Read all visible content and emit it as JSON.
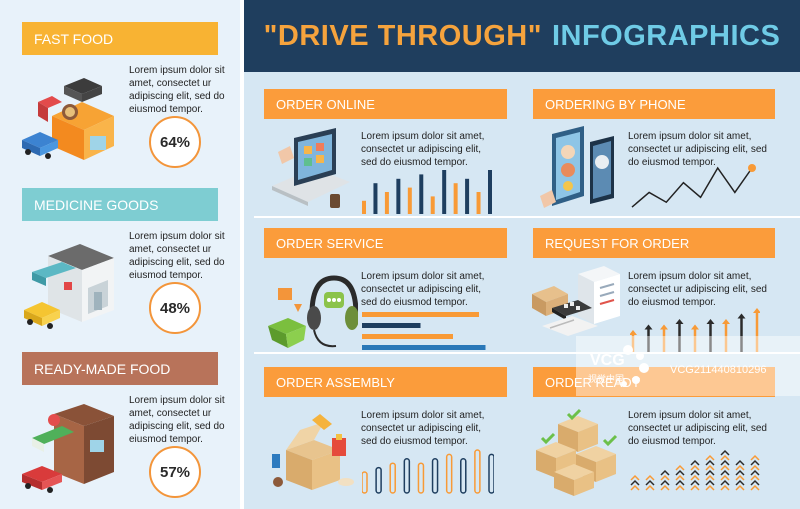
{
  "title": {
    "part1": "\"DRIVE THROUGH\"",
    "part2": "INFOGRAPHICS"
  },
  "lorem": "Lorem ipsum dolor sit amet, consectet ur adipiscing elit, sed do eiusmod tempor.",
  "left": [
    {
      "label": "FAST FOOD",
      "lorem": "Lorem ipsum dolor sit amet, consectet ur adipiscing elit, sed do eiusmod tempor.",
      "percent": "64%",
      "color": "#f8b333"
    },
    {
      "label": "MEDICINE GOODS",
      "lorem": "Lorem ipsum dolor sit amet, consectet ur adipiscing elit, sed do eiusmod tempor.",
      "percent": "48%",
      "color": "#7ecdd2"
    },
    {
      "label": "READY-MADE FOOD",
      "lorem": "Lorem ipsum dolor sit amet, consectet ur adipiscing elit, sed do eiusmod tempor.",
      "percent": "57%",
      "color": "#b8735a"
    }
  ],
  "sections": [
    {
      "label": "ORDER ONLINE",
      "lorem": "Lorem ipsum dolor sit amet, consectet ur adipiscing elit, sed do eiusmod tempor."
    },
    {
      "label": "ORDERING BY PHONE",
      "lorem": "Lorem ipsum dolor sit amet, consectet ur adipiscing elit, sed do eiusmod tempor."
    },
    {
      "label": "ORDER SERVICE",
      "lorem": "Lorem ipsum dolor sit amet, consectet ur adipiscing elit, sed do eiusmod tempor."
    },
    {
      "label": "REQUEST FOR ORDER",
      "lorem": "Lorem ipsum dolor sit amet, consectet ur adipiscing elit, sed do eiusmod tempor."
    },
    {
      "label": "ORDER ASSEMBLY",
      "lorem": "Lorem ipsum dolor sit amet, consectet ur adipiscing elit, sed do eiusmod tempor."
    },
    {
      "label": "ORDER READY",
      "lorem": "Lorem ipsum dolor sit amet, consectet ur adipiscing elit, sed do eiusmod tempor."
    }
  ],
  "watermark": {
    "brand": "VCG",
    "site": "视觉中国",
    "id": "VCG211440810296"
  },
  "colors": {
    "orange": "#f89a36",
    "navy": "#1e3e5f",
    "title_bg": "#1f3e5e",
    "title_orange": "#f5a33d",
    "title_blue": "#6fcbe6"
  },
  "chart_data": [
    {
      "type": "bar",
      "name": "order-online",
      "values": [
        3,
        7,
        5,
        8,
        6,
        9,
        4,
        10,
        7,
        8,
        5,
        10
      ],
      "colors_alternate": [
        "#f89a36",
        "#1e3e5f"
      ]
    },
    {
      "type": "line",
      "name": "ordering-by-phone",
      "values": [
        1,
        4,
        2,
        6,
        3,
        9,
        4,
        9
      ],
      "last_point_marker": true
    },
    {
      "type": "bar",
      "orientation": "horizontal",
      "name": "order-service",
      "values": [
        0.9,
        0.45,
        0.7,
        0.95
      ]
    },
    {
      "type": "bar",
      "name": "request-for-order",
      "values": [
        4,
        5,
        5,
        6,
        5,
        6,
        6,
        7,
        8
      ],
      "style": "arrows"
    },
    {
      "type": "bar",
      "name": "order-assembly",
      "values": [
        5,
        6,
        7,
        8,
        7,
        8,
        9,
        8,
        10,
        9
      ],
      "style": "rounded-outline"
    },
    {
      "type": "bar",
      "name": "order-ready",
      "values": [
        3,
        3,
        4,
        5,
        6,
        7,
        8,
        6,
        7
      ],
      "style": "chevron-stack"
    }
  ]
}
